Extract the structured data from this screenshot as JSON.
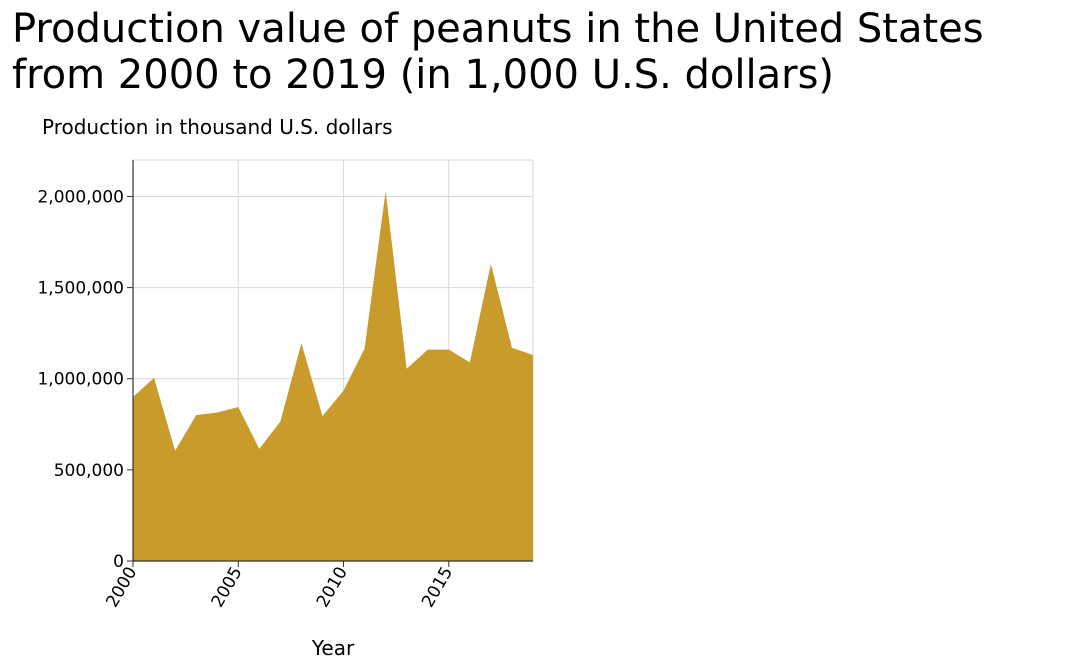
{
  "chart_data": {
    "type": "area",
    "title": "Production value of peanuts in the United States from 2000 to 2019 (in 1,000 U.S. dollars)",
    "xlabel": "Year",
    "ylabel": "Production in thousand U.S. dollars",
    "x": [
      2000,
      2001,
      2002,
      2003,
      2004,
      2005,
      2006,
      2007,
      2008,
      2009,
      2010,
      2011,
      2012,
      2013,
      2014,
      2015,
      2016,
      2017,
      2018,
      2019
    ],
    "values": [
      900000,
      1005000,
      605000,
      800000,
      815000,
      845000,
      615000,
      765000,
      1195000,
      795000,
      935000,
      1165000,
      2030000,
      1055000,
      1160000,
      1160000,
      1090000,
      1630000,
      1170000,
      1130000
    ],
    "xlim": [
      2000,
      2019
    ],
    "ylim": [
      0,
      2200000
    ],
    "x_ticks": [
      2000,
      2005,
      2010,
      2015
    ],
    "x_tick_labels": [
      "2000",
      "2005",
      "2010",
      "2015"
    ],
    "y_ticks": [
      0,
      500000,
      1000000,
      1500000,
      2000000
    ],
    "y_tick_labels": [
      "0",
      "500,000",
      "1,000,000",
      "1,500,000",
      "2,000,000"
    ],
    "grid": true,
    "legend": "none",
    "colors": {
      "fill": "#c89b2a",
      "grid": "#d9d9d9",
      "axis": "#333333"
    }
  }
}
